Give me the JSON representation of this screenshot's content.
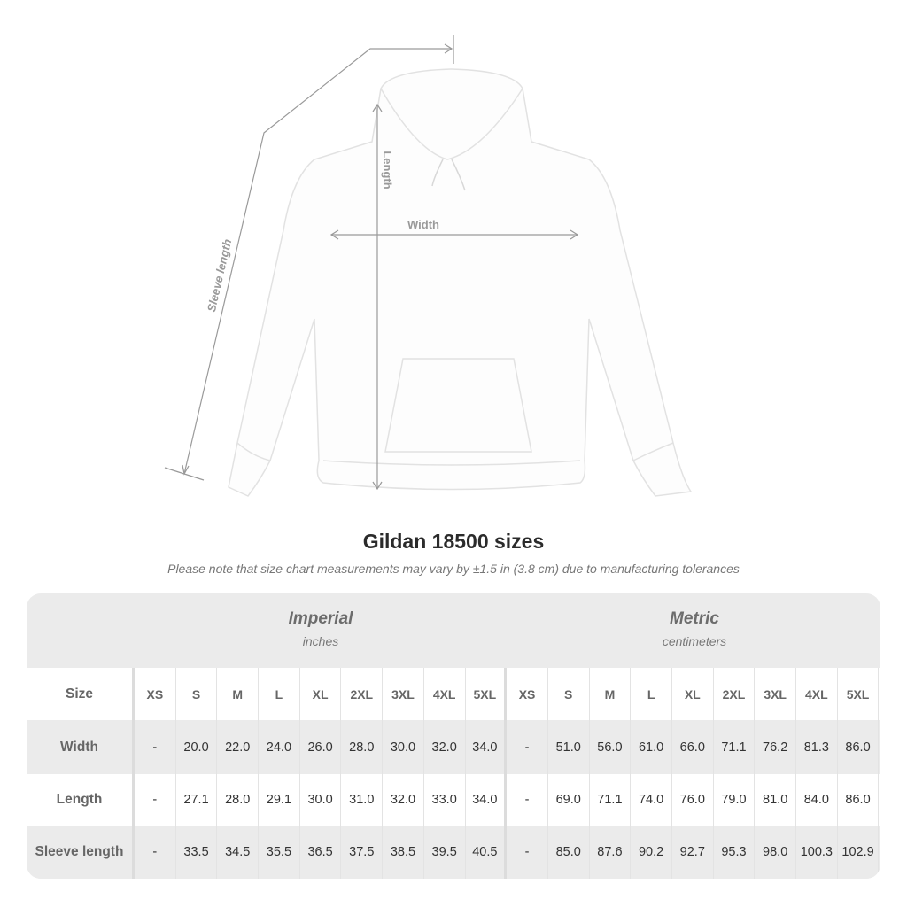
{
  "figure": {
    "labels": {
      "length": "Length",
      "width": "Width",
      "sleeve": "Sleeve length"
    },
    "line_color": "#9a9a9a"
  },
  "title": "Gildan 18500 sizes",
  "note": "Please note that size chart measurements may vary by ±1.5 in (3.8 cm) due to manufacturing tolerances",
  "table": {
    "imperial": {
      "label": "Imperial",
      "unit": "inches"
    },
    "metric": {
      "label": "Metric",
      "unit": "centimeters"
    },
    "size_label": "Size",
    "sizes": [
      "XS",
      "S",
      "M",
      "L",
      "XL",
      "2XL",
      "3XL",
      "4XL",
      "5XL"
    ],
    "rows": [
      {
        "label": "Width",
        "imperial": [
          "-",
          "20.0",
          "22.0",
          "24.0",
          "26.0",
          "28.0",
          "30.0",
          "32.0",
          "34.0"
        ],
        "metric": [
          "-",
          "51.0",
          "56.0",
          "61.0",
          "66.0",
          "71.1",
          "76.2",
          "81.3",
          "86.0"
        ]
      },
      {
        "label": "Length",
        "imperial": [
          "-",
          "27.1",
          "28.0",
          "29.1",
          "30.0",
          "31.0",
          "32.0",
          "33.0",
          "34.0"
        ],
        "metric": [
          "-",
          "69.0",
          "71.1",
          "74.0",
          "76.0",
          "79.0",
          "81.0",
          "84.0",
          "86.0"
        ]
      },
      {
        "label": "Sleeve length",
        "imperial": [
          "-",
          "33.5",
          "34.5",
          "35.5",
          "36.5",
          "37.5",
          "38.5",
          "39.5",
          "40.5"
        ],
        "metric": [
          "-",
          "85.0",
          "87.6",
          "90.2",
          "92.7",
          "95.3",
          "98.0",
          "100.3",
          "102.9"
        ]
      }
    ]
  }
}
